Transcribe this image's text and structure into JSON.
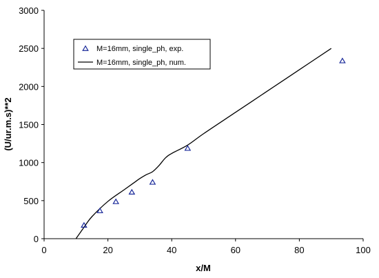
{
  "chart_data": {
    "type": "scatter",
    "title": "",
    "xlabel": "x/M",
    "ylabel": "(U/ur.m.s)**2",
    "xlim": [
      0,
      100
    ],
    "ylim": [
      0,
      3000
    ],
    "xticks": [
      0,
      20,
      40,
      60,
      80,
      100
    ],
    "yticks": [
      0,
      500,
      1000,
      1500,
      2000,
      2500,
      3000
    ],
    "grid": false,
    "legend_position": "top-left",
    "series": [
      {
        "name": "M=16mm, single_ph, exp.",
        "marker": "triangle",
        "color": "#1a2a9a",
        "x": [
          12.5,
          17.5,
          22.5,
          27.5,
          34,
          45,
          93.5
        ],
        "y": [
          180,
          370,
          490,
          615,
          745,
          1190,
          2340
        ]
      },
      {
        "name": "M=16mm, single_ph, num.",
        "line": true,
        "color": "#000000",
        "x": [
          10,
          12.5,
          15,
          20,
          25,
          28,
          30,
          32,
          34,
          36,
          38,
          40,
          45,
          50,
          60,
          70,
          80,
          90
        ],
        "y": [
          0,
          150,
          290,
          490,
          640,
          730,
          790,
          840,
          880,
          960,
          1060,
          1120,
          1230,
          1380,
          1660,
          1940,
          2220,
          2500
        ]
      }
    ]
  }
}
